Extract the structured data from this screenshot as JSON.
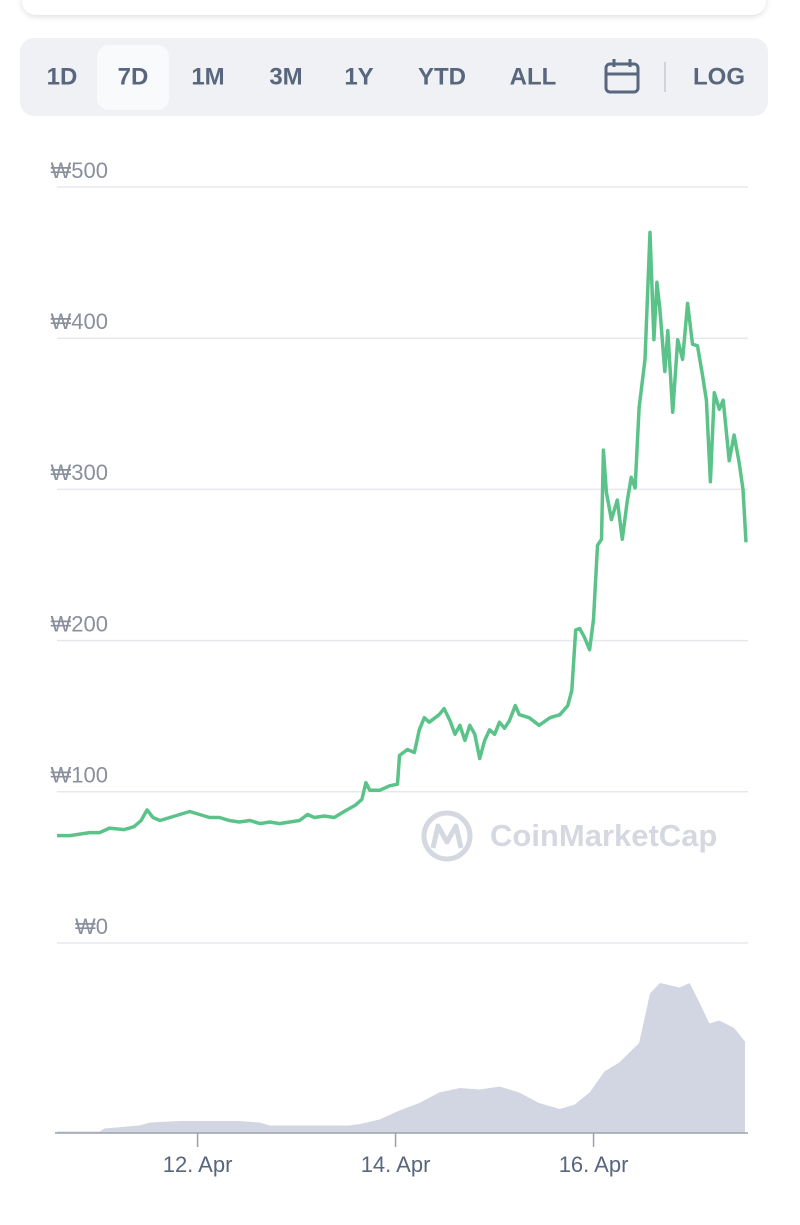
{
  "toolbar": {
    "tabs": [
      "1D",
      "7D",
      "1M",
      "3M",
      "1Y",
      "YTD",
      "ALL"
    ],
    "selected_index": 1,
    "log_toggle": "LOG"
  },
  "watermark": "CoinMarketCap",
  "chart_data": [
    {
      "type": "line",
      "color": "#5bc389",
      "x": [
        10.58,
        10.71,
        10.91,
        11.01,
        11.11,
        11.26,
        11.36,
        11.43,
        11.49,
        11.55,
        11.62,
        11.72,
        11.82,
        11.92,
        12.02,
        12.12,
        12.22,
        12.32,
        12.42,
        12.53,
        12.63,
        12.73,
        12.83,
        12.93,
        13.03,
        13.11,
        13.18,
        13.28,
        13.38,
        13.48,
        13.59,
        13.66,
        13.7,
        13.74,
        13.84,
        13.94,
        14.02,
        14.04,
        14.12,
        14.19,
        14.24,
        14.29,
        14.34,
        14.44,
        14.49,
        14.55,
        14.6,
        14.65,
        14.7,
        14.75,
        14.8,
        14.85,
        14.9,
        14.95,
        15.0,
        15.05,
        15.1,
        15.15,
        15.21,
        15.25,
        15.35,
        15.45,
        15.56,
        15.66,
        15.74,
        15.78,
        15.82,
        15.86,
        15.91,
        15.96,
        16.0,
        16.04,
        16.08,
        16.1,
        16.13,
        16.18,
        16.24,
        16.29,
        16.34,
        16.38,
        16.42,
        16.46,
        16.52,
        16.57,
        16.61,
        16.64,
        16.67,
        16.72,
        16.75,
        16.8,
        16.85,
        16.9,
        16.95,
        17.0,
        17.05,
        17.1,
        17.14,
        17.18,
        17.22,
        17.27,
        17.31,
        17.37,
        17.42,
        17.47,
        17.51,
        17.54
      ],
      "values": [
        71,
        71,
        73,
        73,
        76,
        75,
        77,
        81,
        88,
        83,
        81,
        83,
        85,
        87,
        85,
        83,
        83,
        81,
        80,
        81,
        79,
        80,
        79,
        80,
        81,
        85,
        83,
        84,
        83,
        87,
        91,
        95,
        106,
        101,
        101,
        104,
        105,
        124,
        128,
        126,
        141,
        149,
        146,
        151,
        155,
        147,
        138,
        144,
        134,
        144,
        138,
        122,
        134,
        141,
        138,
        146,
        142,
        147,
        157,
        151,
        149,
        144,
        149,
        151,
        157,
        167,
        207,
        208,
        202,
        194,
        214,
        263,
        267,
        326,
        298,
        280,
        293,
        267,
        292,
        308,
        301,
        354,
        386,
        470,
        399,
        437,
        419,
        378,
        405,
        351,
        399,
        386,
        423,
        396,
        395,
        376,
        359,
        305,
        364,
        353,
        359,
        319,
        336,
        318,
        300,
        265
      ],
      "xlim": [
        10.58,
        17.54
      ],
      "ylim": [
        0,
        500
      ],
      "yticks": [
        {
          "value": 0,
          "label": "₩0"
        },
        {
          "value": 100,
          "label": "₩100"
        },
        {
          "value": 200,
          "label": "₩200"
        },
        {
          "value": 300,
          "label": "₩300"
        },
        {
          "value": 400,
          "label": "₩400"
        },
        {
          "value": 500,
          "label": "₩500"
        }
      ],
      "grid": true
    },
    {
      "type": "area",
      "color": "#d2d6e2",
      "x": [
        10.58,
        11.01,
        11.06,
        11.41,
        11.52,
        11.82,
        12.42,
        12.63,
        12.73,
        13.03,
        13.53,
        13.64,
        13.84,
        14.04,
        14.24,
        14.44,
        14.65,
        14.85,
        15.05,
        15.25,
        15.45,
        15.66,
        15.81,
        15.96,
        16.11,
        16.26,
        16.46,
        16.57,
        16.67,
        16.87,
        16.97,
        17.07,
        17.17,
        17.27,
        17.42,
        17.53
      ],
      "values": [
        1,
        1,
        3,
        5,
        7,
        8,
        8,
        7,
        5,
        5,
        5,
        6,
        9,
        15,
        20,
        27,
        30,
        29,
        31,
        27,
        20,
        16,
        19,
        27,
        41,
        47,
        60,
        93,
        100,
        97,
        100,
        87,
        73,
        75,
        70,
        61
      ],
      "xlim": [
        10.58,
        17.54
      ],
      "ylim": [
        0,
        100
      ],
      "xticks": [
        {
          "value": 12,
          "label": "12. Apr"
        },
        {
          "value": 14,
          "label": "14. Apr"
        },
        {
          "value": 16,
          "label": "16. Apr"
        }
      ]
    }
  ]
}
